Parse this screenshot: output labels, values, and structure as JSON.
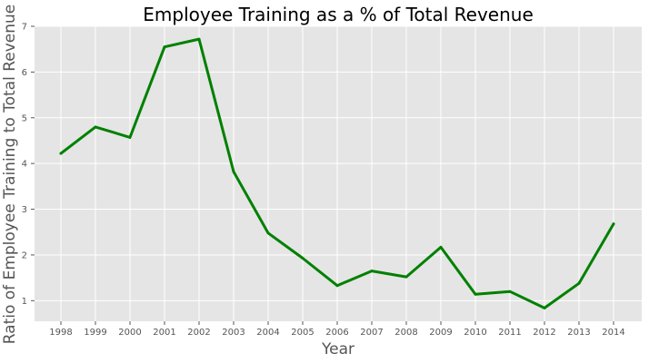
{
  "chart_data": {
    "type": "line",
    "title": "Employee Training as a % of Total Revenue",
    "xlabel": "Year",
    "ylabel": "Ratio of Employee Training to Total Revenue",
    "x": [
      "1998",
      "1999",
      "2000",
      "2001",
      "2002",
      "2003",
      "2004",
      "2005",
      "2006",
      "2007",
      "2008",
      "2009",
      "2010",
      "2011",
      "2012",
      "2013",
      "2014"
    ],
    "series": [
      {
        "values": [
          4.22,
          4.8,
          4.57,
          6.55,
          6.72,
          3.82,
          2.48,
          1.93,
          1.33,
          1.65,
          1.52,
          2.17,
          1.14,
          1.2,
          0.84,
          1.38,
          2.68
        ]
      }
    ],
    "yticks": [
      1,
      2,
      3,
      4,
      5,
      6,
      7
    ],
    "ylim": [
      0.55,
      7.0
    ],
    "grid": true,
    "style": "ggplot",
    "colors": {
      "background": "#e5e5e5",
      "grid": "#ffffff",
      "line": "#008000",
      "tick_text": "#555555"
    }
  }
}
